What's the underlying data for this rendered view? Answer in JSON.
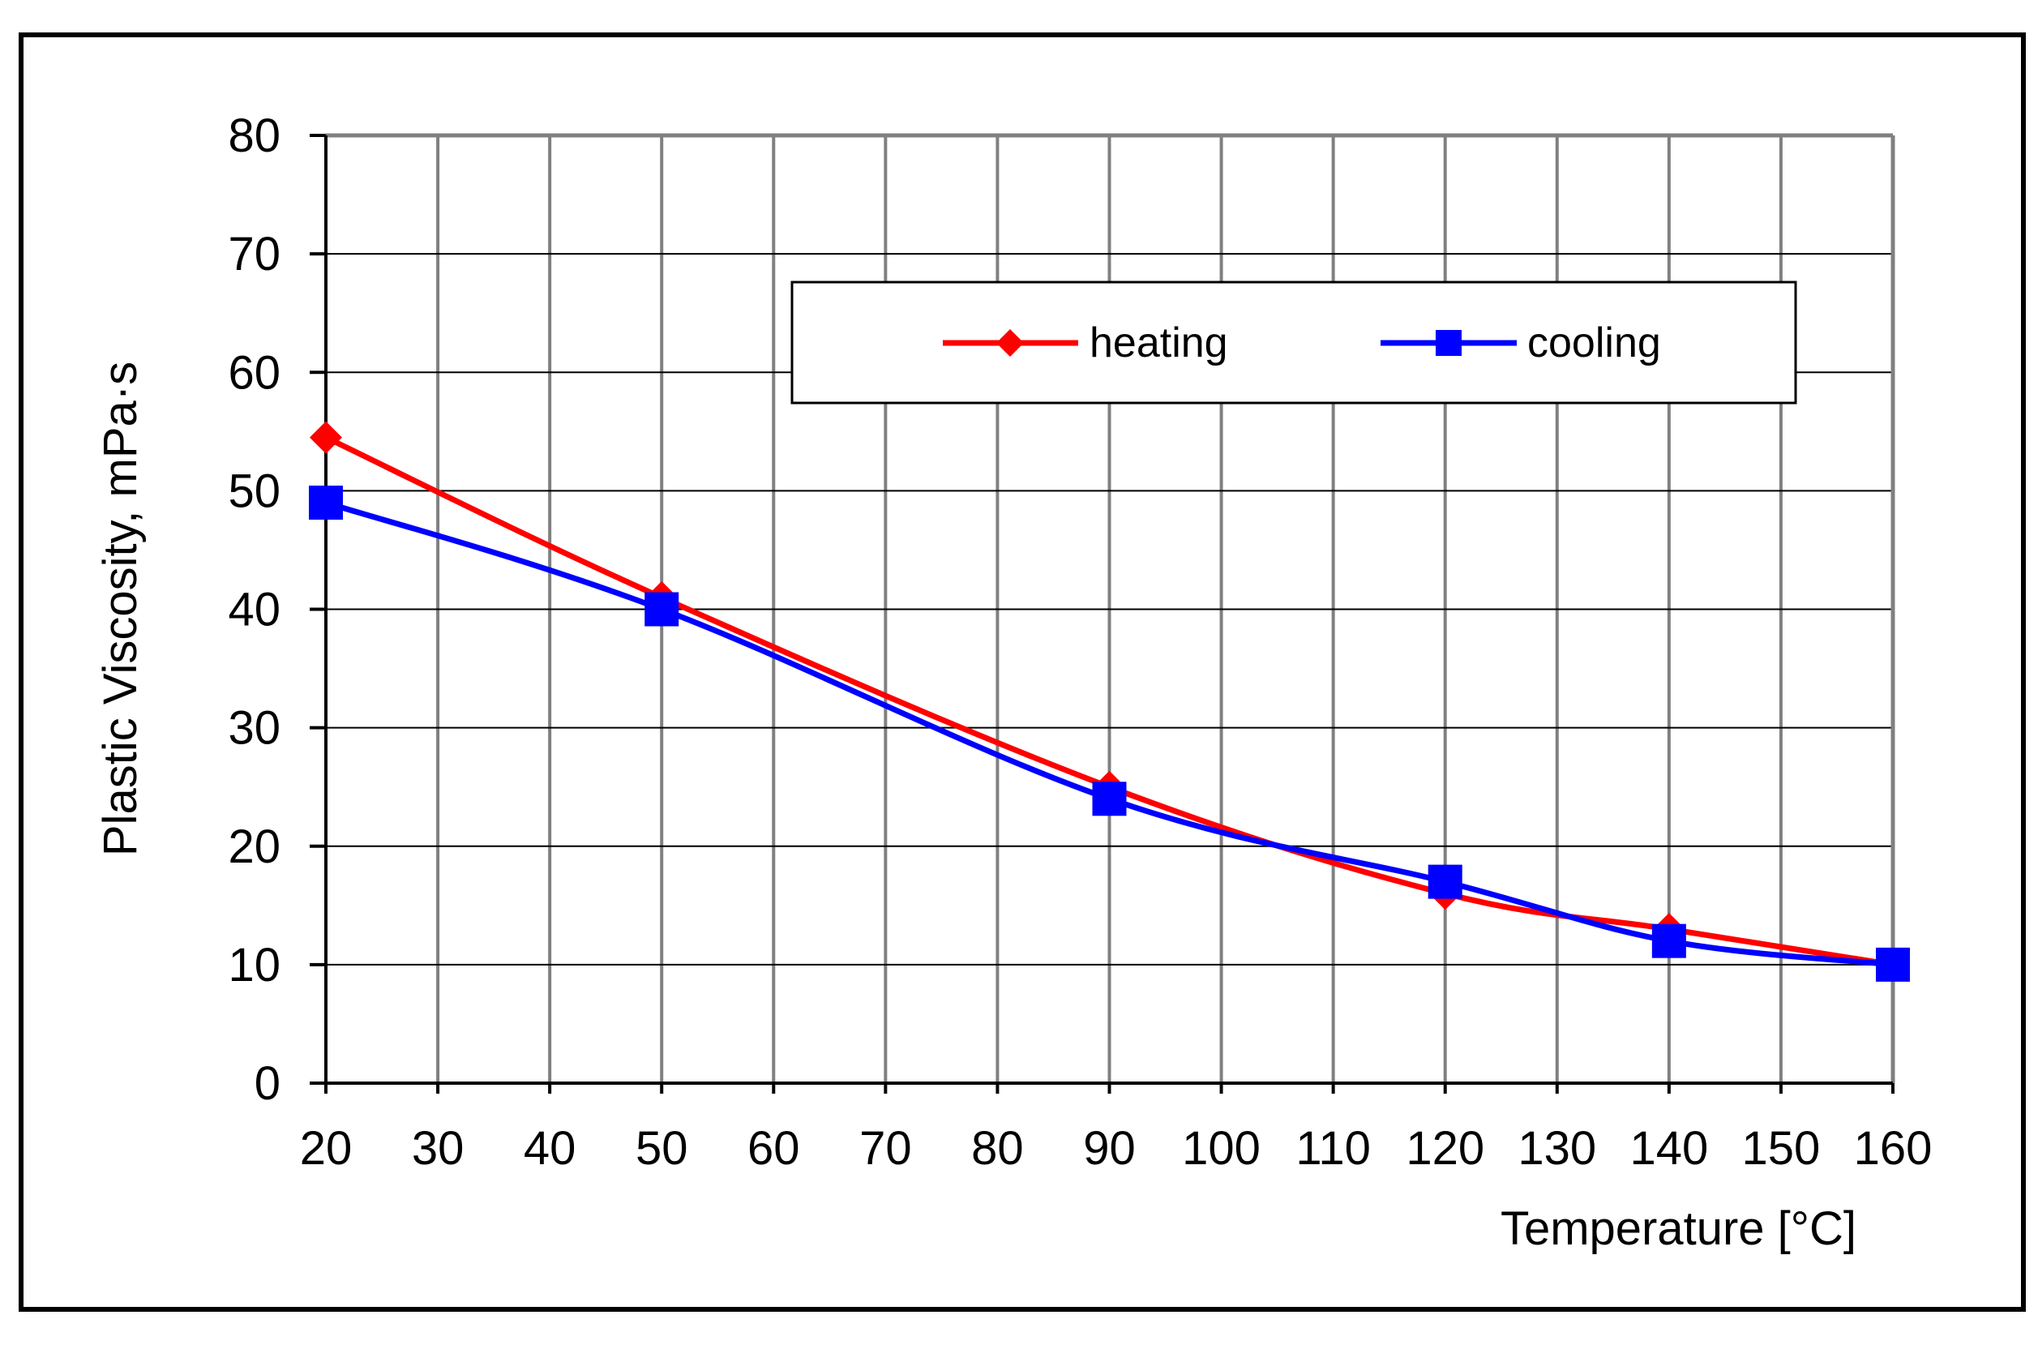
{
  "chart_data": {
    "type": "line",
    "title": "",
    "xlabel": "Temperature [°C]",
    "ylabel": "Plastic Viscosity, mPa·s",
    "xlim": [
      20,
      160
    ],
    "ylim": [
      0,
      80
    ],
    "x_ticks": [
      "20",
      "30",
      "40",
      "50",
      "60",
      "70",
      "80",
      "90",
      "100",
      "110",
      "120",
      "130",
      "140",
      "150",
      "160"
    ],
    "y_ticks": [
      "0",
      "10",
      "20",
      "30",
      "40",
      "50",
      "60",
      "70",
      "80"
    ],
    "grid": true,
    "legend_position": "top-right",
    "series": [
      {
        "name": "heating",
        "color": "#ff0000",
        "marker": "diamond",
        "x": [
          20,
          50,
          90,
          120,
          140,
          160
        ],
        "y": [
          54.5,
          41,
          25,
          16,
          13,
          10
        ]
      },
      {
        "name": "cooling",
        "color": "#0000ff",
        "marker": "square",
        "x": [
          20,
          50,
          90,
          120,
          140,
          160
        ],
        "y": [
          49,
          40,
          24,
          17,
          12,
          10
        ]
      }
    ]
  }
}
